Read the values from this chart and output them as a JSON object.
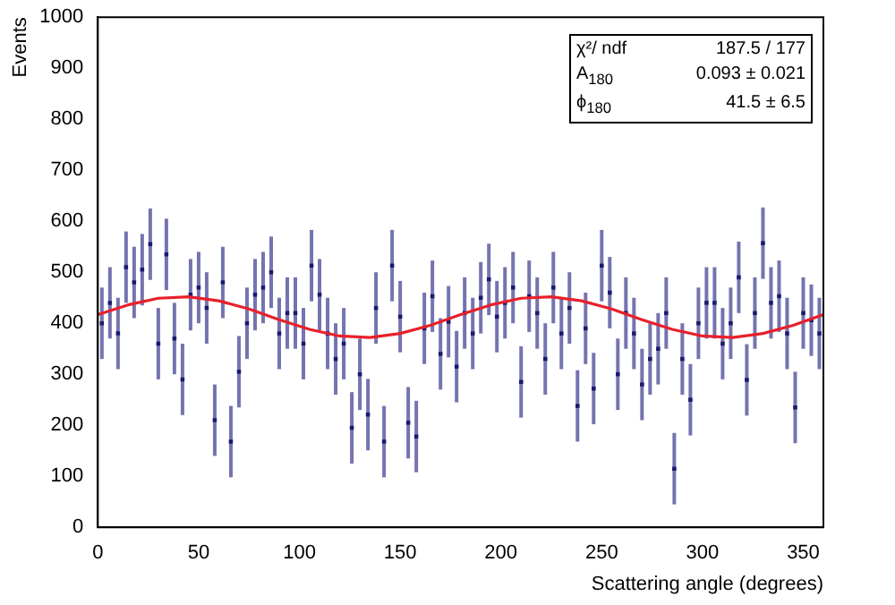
{
  "chart_data": {
    "type": "scatter",
    "xlabel": "Scattering angle (degrees)",
    "ylabel": "Events",
    "xlim": [
      0,
      360
    ],
    "ylim": [
      0,
      1000
    ],
    "xticks": [
      0,
      50,
      100,
      150,
      200,
      250,
      300,
      350
    ],
    "yticks": [
      0,
      100,
      200,
      300,
      400,
      500,
      600,
      700,
      800,
      900,
      1000
    ],
    "grid": false,
    "legend": false,
    "annotations": [
      "χ²/ ndf   187.5 / 177",
      "A$_{180}$   0.093 ± 0.021",
      "ϕ$_{180}$   41.5 ± 6.5"
    ],
    "series": [
      {
        "color": "#1a1a6e",
        "marker": "square",
        "x": [
          2,
          6,
          10,
          14,
          18,
          22,
          26,
          30,
          34,
          38,
          42,
          46,
          50,
          54,
          58,
          62,
          66,
          70,
          74,
          78,
          82,
          86,
          90,
          94,
          98,
          102,
          106,
          110,
          114,
          118,
          122,
          126,
          130,
          134,
          138,
          142,
          146,
          150,
          154,
          158,
          162,
          166,
          170,
          174,
          178,
          182,
          186,
          190,
          194,
          198,
          202,
          206,
          210,
          214,
          218,
          222,
          226,
          230,
          234,
          238,
          242,
          246,
          250,
          254,
          258,
          262,
          266,
          270,
          274,
          278,
          282,
          286,
          290,
          294,
          298,
          302,
          306,
          310,
          314,
          318,
          322,
          326,
          330,
          334,
          338,
          342,
          346,
          350,
          354,
          358
        ],
        "values": [
          400,
          440,
          380,
          510,
          480,
          505,
          555,
          360,
          535,
          370,
          290,
          456,
          470,
          430,
          210,
          480,
          168,
          305,
          400,
          456,
          470,
          500,
          380,
          420,
          420,
          360,
          513,
          456,
          380,
          330,
          360,
          195,
          300,
          221,
          430,
          168,
          513,
          413,
          205,
          178,
          390,
          453,
          340,
          403,
          315,
          420,
          380,
          450,
          486,
          413,
          440,
          470,
          285,
          453,
          420,
          330,
          470,
          380,
          430,
          238,
          390,
          272,
          513,
          460,
          300,
          420,
          380,
          280,
          330,
          350,
          420,
          115,
          330,
          250,
          400,
          440,
          440,
          360,
          400,
          490,
          289,
          420,
          557,
          440,
          453,
          380,
          235,
          420,
          406,
          380
        ],
        "errors": [
          70,
          70,
          70,
          70,
          70,
          70,
          70,
          70,
          70,
          70,
          70,
          70,
          70,
          70,
          70,
          70,
          70,
          70,
          70,
          70,
          70,
          70,
          70,
          70,
          70,
          70,
          70,
          70,
          70,
          70,
          70,
          70,
          70,
          70,
          70,
          70,
          70,
          70,
          70,
          70,
          70,
          70,
          70,
          70,
          70,
          70,
          70,
          70,
          70,
          70,
          70,
          70,
          70,
          70,
          70,
          70,
          70,
          70,
          70,
          70,
          70,
          70,
          70,
          70,
          70,
          70,
          70,
          70,
          70,
          70,
          70,
          70,
          70,
          70,
          70,
          70,
          70,
          70,
          70,
          70,
          70,
          70,
          70,
          70,
          70,
          70,
          70,
          70,
          70,
          70
        ]
      },
      {
        "type": "line",
        "color": "#e8202a",
        "x": [
          0,
          15,
          30,
          45,
          60,
          75,
          90,
          105,
          120,
          135,
          150,
          165,
          180,
          195,
          210,
          225,
          240,
          255,
          270,
          285,
          300,
          315,
          330,
          345,
          360
        ],
        "values": [
          417,
          436,
          449,
          452,
          444,
          428,
          407,
          388,
          375,
          372,
          380,
          396,
          417,
          436,
          449,
          452,
          444,
          428,
          407,
          388,
          375,
          372,
          380,
          396,
          417
        ]
      }
    ]
  }
}
